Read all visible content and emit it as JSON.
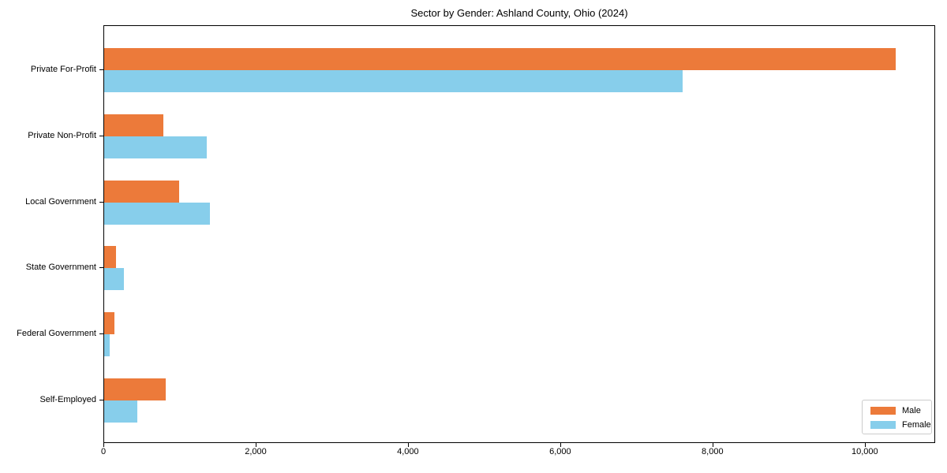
{
  "chart_data": {
    "type": "bar",
    "orientation": "horizontal",
    "title": "Sector by Gender: Ashland County, Ohio (2024)",
    "categories": [
      "Private For-Profit",
      "Private Non-Profit",
      "Local Government",
      "State Government",
      "Federal Government",
      "Self-Employed"
    ],
    "series": [
      {
        "name": "Male",
        "color": "#ec7a3a",
        "values": [
          10400,
          780,
          980,
          160,
          135,
          810
        ]
      },
      {
        "name": "Female",
        "color": "#87ceeb",
        "values": [
          7600,
          1350,
          1390,
          255,
          75,
          430
        ]
      }
    ],
    "xlabel": "",
    "ylabel": "",
    "xlim": [
      0,
      10925
    ],
    "xticks": [
      0,
      2000,
      4000,
      6000,
      8000,
      10000
    ],
    "xtick_labels": [
      "0",
      "2,000",
      "4,000",
      "6,000",
      "8,000",
      "10,000"
    ],
    "grid": false,
    "legend": {
      "position": "lower-right",
      "entries": [
        "Male",
        "Female"
      ]
    }
  }
}
